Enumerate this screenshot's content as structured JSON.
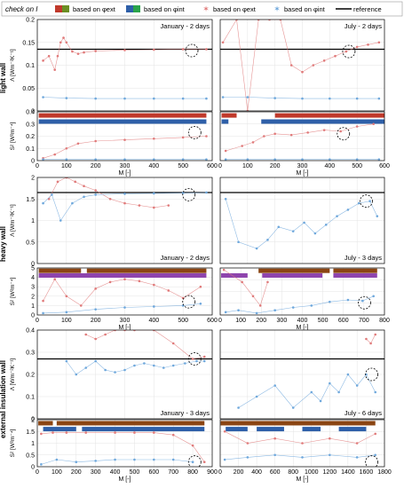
{
  "legend": {
    "check_label": "check on I",
    "items": [
      {
        "label": "based on φext",
        "kind": "box",
        "colors": [
          "#c0392b",
          "#6b8e23"
        ]
      },
      {
        "label": "based on φint",
        "kind": "box",
        "colors": [
          "#2e5fa8",
          "#2aa34a"
        ]
      },
      {
        "label": "based on φext",
        "kind": "marker",
        "colors": [
          "#e07a7a"
        ]
      },
      {
        "label": "based on φint",
        "kind": "marker",
        "colors": [
          "#6fa8dc"
        ]
      },
      {
        "label": "reference",
        "kind": "line",
        "colors": [
          "#000000"
        ]
      }
    ]
  },
  "colors": {
    "ext": "#e07a7a",
    "int": "#6fa8dc",
    "ref": "#000000",
    "bar_ext": "#c0392b",
    "bar_ext2": "#8b4513",
    "bar_int": "#2e5fa8",
    "bar_int2": "#8e44ad"
  },
  "rows": [
    {
      "label": "light wall"
    },
    {
      "label": "heavy wall"
    },
    {
      "label": "external insulation wall"
    }
  ],
  "chart_data": [
    {
      "type": "scatter",
      "panel": "light-left-lambda",
      "title": "January - 2 days",
      "ylabel": "Λ [Wm⁻²K⁻¹]",
      "xlim": [
        0,
        600
      ],
      "ylim": [
        0,
        0.2
      ],
      "yticks": [
        "0",
        "0.05",
        "0.1",
        "0.15",
        "0.2"
      ],
      "xticks": [],
      "reference": 0.135,
      "series": [
        {
          "name": "ext",
          "x": [
            20,
            40,
            60,
            70,
            80,
            90,
            100,
            120,
            140,
            160,
            200,
            300,
            400,
            500,
            580
          ],
          "y": [
            0.11,
            0.12,
            0.09,
            0.12,
            0.15,
            0.16,
            0.15,
            0.13,
            0.125,
            0.128,
            0.131,
            0.133,
            0.134,
            0.135,
            0.135
          ]
        },
        {
          "name": "int",
          "x": [
            20,
            100,
            200,
            300,
            400,
            500,
            580
          ],
          "y": [
            0.03,
            0.028,
            0.027,
            0.027,
            0.027,
            0.027,
            0.027
          ]
        }
      ],
      "circle": [
        530,
        0.132
      ]
    },
    {
      "type": "scatter",
      "panel": "light-right-lambda",
      "title": "July - 2 days",
      "xlim": [
        0,
        600
      ],
      "ylim": [
        0,
        0.2
      ],
      "yticks": [],
      "xticks": [],
      "reference": 0.135,
      "series": [
        {
          "name": "ext",
          "x": [
            10,
            60,
            100,
            140,
            180,
            220,
            260,
            300,
            340,
            380,
            420,
            460,
            500,
            540,
            580
          ],
          "y": [
            0.15,
            0.2,
            0.0,
            0.2,
            0.2,
            0.2,
            0.1,
            0.085,
            0.1,
            0.11,
            0.12,
            0.13,
            0.14,
            0.145,
            0.15
          ]
        },
        {
          "name": "int",
          "x": [
            10,
            100,
            200,
            300,
            400,
            500,
            580
          ],
          "y": [
            0.03,
            0.03,
            0.028,
            0.027,
            0.027,
            0.027,
            0.027
          ]
        }
      ],
      "circle": [
        470,
        0.13
      ]
    },
    {
      "type": "scatter",
      "panel": "light-left-s2",
      "ylabel": "S² [W²m⁻⁴]",
      "xlabel": "M [-]",
      "xlim": [
        0,
        600
      ],
      "ylim": [
        0,
        0.4
      ],
      "yticks": [
        "0",
        "0.1",
        "0.2",
        "0.3",
        "0.4"
      ],
      "xticks": [
        "0",
        "100",
        "200",
        "300",
        "400",
        "500",
        "600"
      ],
      "series": [
        {
          "name": "ext",
          "x": [
            20,
            60,
            100,
            140,
            200,
            300,
            400,
            500,
            580
          ],
          "y": [
            0.02,
            0.05,
            0.1,
            0.14,
            0.16,
            0.17,
            0.18,
            0.19,
            0.2
          ]
        },
        {
          "name": "int",
          "x": [
            20,
            100,
            200,
            300,
            400,
            500,
            580
          ],
          "y": [
            0.01,
            0.01,
            0.01,
            0.01,
            0.01,
            0.01,
            0.01
          ]
        }
      ],
      "bars": [
        {
          "color": "bar_ext",
          "y": 0.37,
          "segments": [
            [
              5,
              580
            ]
          ]
        },
        {
          "color": "bar_int",
          "y": 0.32,
          "segments": [
            [
              5,
              580
            ]
          ]
        }
      ],
      "circle": [
        540,
        0.23
      ]
    },
    {
      "type": "scatter",
      "panel": "light-right-s2",
      "xlabel": "M [-]",
      "xlim": [
        0,
        600
      ],
      "ylim": [
        0,
        0.4
      ],
      "yticks": [],
      "xticks": [
        "0",
        "100",
        "200",
        "300",
        "400",
        "500",
        "600"
      ],
      "series": [
        {
          "name": "ext",
          "x": [
            20,
            80,
            120,
            160,
            200,
            260,
            320,
            380,
            440,
            500,
            560
          ],
          "y": [
            0.08,
            0.12,
            0.15,
            0.2,
            0.22,
            0.21,
            0.23,
            0.25,
            0.24,
            0.28,
            0.3
          ]
        },
        {
          "name": "int",
          "x": [
            20,
            100,
            200,
            300,
            400,
            500,
            580
          ],
          "y": [
            0.01,
            0.01,
            0.01,
            0.01,
            0.01,
            0.01,
            0.01
          ]
        }
      ],
      "bars": [
        {
          "color": "bar_ext",
          "y": 0.37,
          "segments": [
            [
              5,
              60
            ],
            [
              200,
              600
            ]
          ]
        },
        {
          "color": "bar_int",
          "y": 0.32,
          "segments": [
            [
              5,
              30
            ],
            [
              150,
              600
            ]
          ]
        }
      ],
      "circle": [
        450,
        0.22
      ]
    },
    {
      "type": "scatter",
      "panel": "heavy-left-lambda",
      "title": "January - 2 days",
      "ylabel": "Λ [Wm⁻²K⁻¹]",
      "xlim": [
        0,
        600
      ],
      "ylim": [
        0,
        2
      ],
      "yticks": [
        "0",
        "0.5",
        "1",
        "1.5",
        "2"
      ],
      "xticks": [],
      "reference": 1.65,
      "series": [
        {
          "name": "ext",
          "x": [
            40,
            70,
            100,
            130,
            160,
            200,
            250,
            300,
            350,
            400,
            450
          ],
          "y": [
            1.5,
            1.9,
            2.0,
            1.9,
            1.8,
            1.7,
            1.5,
            1.4,
            1.35,
            1.3,
            1.35
          ]
        },
        {
          "name": "int",
          "x": [
            20,
            50,
            80,
            120,
            160,
            200,
            300,
            400,
            500,
            580
          ],
          "y": [
            1.4,
            1.6,
            1.0,
            1.4,
            1.55,
            1.6,
            1.62,
            1.63,
            1.64,
            1.65
          ]
        }
      ],
      "circle": [
        520,
        1.6
      ]
    },
    {
      "type": "scatter",
      "panel": "heavy-right-lambda",
      "title": "July - 3 days",
      "xlim": [
        0,
        900
      ],
      "ylim": [
        0,
        2
      ],
      "yticks": [],
      "xticks": [],
      "reference": 1.65,
      "series": [
        {
          "name": "int",
          "x": [
            30,
            100,
            200,
            260,
            320,
            400,
            460,
            520,
            580,
            640,
            700,
            760,
            820,
            860
          ],
          "y": [
            1.5,
            0.5,
            0.35,
            0.55,
            0.85,
            0.75,
            0.95,
            0.7,
            0.9,
            1.1,
            1.25,
            1.4,
            1.45,
            1.1
          ]
        }
      ],
      "circle": [
        800,
        1.45
      ]
    },
    {
      "type": "scatter",
      "panel": "heavy-left-s2",
      "ylabel": "S² [W²m⁻⁴]",
      "xlabel": "M [-]",
      "xlim": [
        0,
        600
      ],
      "ylim": [
        0,
        5
      ],
      "yticks": [
        "0",
        "1",
        "2",
        "3",
        "4",
        "5"
      ],
      "xticks": [
        "0",
        "100",
        "200",
        "300",
        "400",
        "500",
        "600"
      ],
      "series": [
        {
          "name": "ext",
          "x": [
            20,
            60,
            100,
            150,
            200,
            250,
            300,
            350,
            400,
            450,
            500,
            560
          ],
          "y": [
            1.5,
            3.8,
            2.0,
            1.0,
            2.8,
            3.5,
            3.8,
            3.6,
            3.2,
            2.6,
            1.8,
            3.0
          ]
        },
        {
          "name": "int",
          "x": [
            20,
            100,
            200,
            300,
            400,
            500,
            560
          ],
          "y": [
            0.2,
            0.3,
            0.6,
            0.8,
            0.9,
            1.0,
            1.2
          ]
        }
      ],
      "bars": [
        {
          "color": "bar_ext2",
          "y": 4.7,
          "segments": [
            [
              5,
              150
            ],
            [
              170,
              580
            ]
          ]
        },
        {
          "color": "bar_int2",
          "y": 4.2,
          "segments": [
            [
              5,
              580
            ]
          ]
        }
      ],
      "circle": [
        520,
        1.4
      ]
    },
    {
      "type": "scatter",
      "panel": "heavy-right-s2",
      "xlabel": "M [-]",
      "xlim": [
        0,
        900
      ],
      "ylim": [
        0,
        5
      ],
      "yticks": [],
      "xticks": [
        "0",
        "100",
        "200",
        "300",
        "400",
        "500",
        "600",
        "700",
        "800"
      ],
      "series": [
        {
          "name": "ext",
          "x": [
            20,
            120,
            180,
            220,
            260
          ],
          "y": [
            4.8,
            3.5,
            2.0,
            1.0,
            3.5
          ]
        },
        {
          "name": "int",
          "x": [
            30,
            100,
            200,
            300,
            400,
            500,
            600,
            700,
            780,
            840
          ],
          "y": [
            0.3,
            0.5,
            0.2,
            0.5,
            0.8,
            1.0,
            1.4,
            1.6,
            1.5,
            2.0
          ]
        }
      ],
      "bars": [
        {
          "color": "bar_ext2",
          "y": 4.7,
          "segments": [
            [
              210,
              600
            ],
            [
              620,
              860
            ]
          ]
        },
        {
          "color": "bar_int2",
          "y": 4.2,
          "segments": [
            [
              5,
              150
            ],
            [
              230,
              560
            ],
            [
              620,
              860
            ]
          ]
        }
      ],
      "circle": [
        790,
        1.3
      ]
    },
    {
      "type": "scatter",
      "panel": "extins-left-lambda",
      "title": "January - 3 days",
      "ylabel": "Λ [Wm⁻²K⁻¹]",
      "xlim": [
        0,
        900
      ],
      "ylim": [
        0,
        0.4
      ],
      "yticks": [
        "0",
        "0.1",
        "0.2",
        "0.3",
        "0.4"
      ],
      "xticks": [],
      "reference": 0.27,
      "series": [
        {
          "name": "ext",
          "x": [
            250,
            300,
            350,
            400,
            450,
            500,
            600,
            700,
            800,
            860
          ],
          "y": [
            0.38,
            0.36,
            0.38,
            0.4,
            0.4,
            0.4,
            0.4,
            0.34,
            0.27,
            0.28
          ]
        },
        {
          "name": "int",
          "x": [
            150,
            200,
            250,
            300,
            350,
            400,
            450,
            500,
            550,
            600,
            650,
            700,
            760,
            820,
            860
          ],
          "y": [
            0.26,
            0.2,
            0.23,
            0.26,
            0.22,
            0.21,
            0.22,
            0.24,
            0.25,
            0.24,
            0.23,
            0.24,
            0.25,
            0.26,
            0.26
          ]
        }
      ],
      "circle": [
        810,
        0.27
      ]
    },
    {
      "type": "scatter",
      "panel": "extins-right-lambda",
      "title": "July - 6 days",
      "xlim": [
        0,
        1800
      ],
      "ylim": [
        0,
        0.4
      ],
      "yticks": [],
      "xticks": [],
      "reference": 0.27,
      "series": [
        {
          "name": "ext",
          "x": [
            1600,
            1650,
            1700
          ],
          "y": [
            0.36,
            0.34,
            0.38
          ]
        },
        {
          "name": "int",
          "x": [
            200,
            400,
            600,
            800,
            1000,
            1100,
            1200,
            1300,
            1400,
            1500,
            1600,
            1700
          ],
          "y": [
            0.05,
            0.1,
            0.15,
            0.05,
            0.12,
            0.08,
            0.16,
            0.12,
            0.2,
            0.15,
            0.2,
            0.12
          ]
        }
      ],
      "circle": [
        1660,
        0.2
      ]
    },
    {
      "type": "scatter",
      "panel": "extins-left-s2",
      "ylabel": "S² [W²m⁻⁴]",
      "xlabel": "M [-]",
      "xlim": [
        0,
        900
      ],
      "ylim": [
        0,
        2
      ],
      "yticks": [
        "0",
        "0.5",
        "1",
        "1.5",
        "2"
      ],
      "xticks": [
        "0",
        "100",
        "200",
        "300",
        "400",
        "500",
        "600",
        "700",
        "800",
        "900"
      ],
      "series": [
        {
          "name": "ext",
          "x": [
            20,
            80,
            150,
            250,
            400,
            500,
            600,
            700,
            800,
            860
          ],
          "y": [
            1.4,
            1.45,
            1.45,
            1.45,
            1.45,
            1.45,
            1.45,
            1.35,
            0.9,
            0.2
          ]
        },
        {
          "name": "int",
          "x": [
            20,
            100,
            200,
            300,
            400,
            500,
            600,
            700,
            800
          ],
          "y": [
            0.1,
            0.3,
            0.2,
            0.25,
            0.3,
            0.3,
            0.3,
            0.3,
            0.2
          ]
        }
      ],
      "bars": [
        {
          "color": "bar_ext2",
          "y": 1.85,
          "segments": [
            [
              5,
              80
            ],
            [
              100,
              860
            ]
          ]
        },
        {
          "color": "bar_int",
          "y": 1.6,
          "segments": [
            [
              30,
              200
            ],
            [
              230,
              860
            ]
          ]
        }
      ],
      "circle": [
        810,
        0.2
      ]
    },
    {
      "type": "scatter",
      "panel": "extins-right-s2",
      "xlabel": "M [-]",
      "xlim": [
        0,
        1800
      ],
      "ylim": [
        0,
        2
      ],
      "yticks": [],
      "xticks": [
        "0",
        "200",
        "400",
        "600",
        "800",
        "1000",
        "1200",
        "1400",
        "1600",
        "1800"
      ],
      "series": [
        {
          "name": "ext",
          "x": [
            50,
            300,
            600,
            900,
            1200,
            1500,
            1700
          ],
          "y": [
            1.5,
            1.0,
            1.2,
            1.0,
            1.2,
            1.0,
            1.4
          ]
        },
        {
          "name": "int",
          "x": [
            50,
            300,
            600,
            900,
            1200,
            1500,
            1700
          ],
          "y": [
            0.3,
            0.4,
            0.5,
            0.4,
            0.5,
            0.4,
            0.5
          ]
        }
      ],
      "bars": [
        {
          "color": "bar_ext2",
          "y": 1.85,
          "segments": [
            [
              5,
              1700
            ]
          ]
        },
        {
          "color": "bar_int",
          "y": 1.6,
          "segments": [
            [
              60,
              300
            ],
            [
              400,
              700
            ],
            [
              900,
              1100
            ],
            [
              1300,
              1600
            ]
          ]
        }
      ],
      "circle": [
        1660,
        0.2
      ]
    }
  ]
}
